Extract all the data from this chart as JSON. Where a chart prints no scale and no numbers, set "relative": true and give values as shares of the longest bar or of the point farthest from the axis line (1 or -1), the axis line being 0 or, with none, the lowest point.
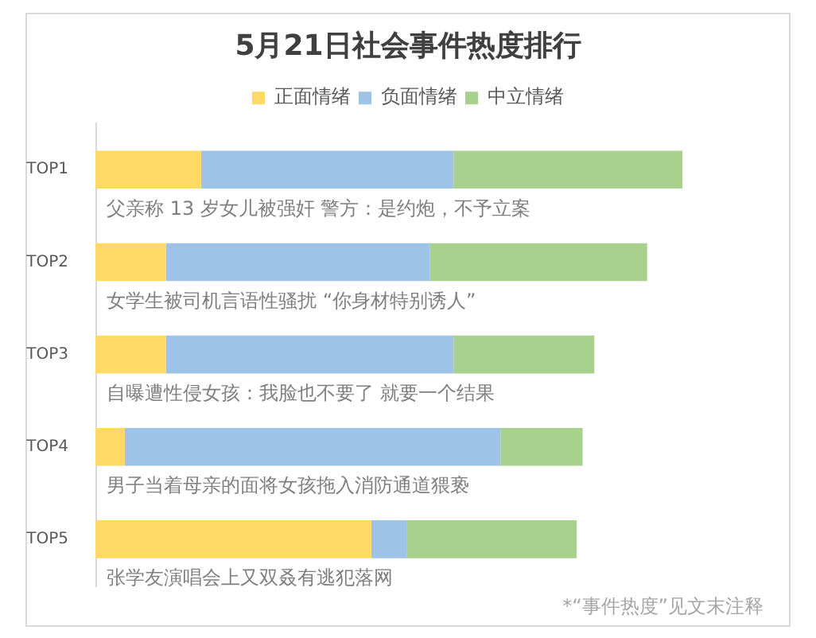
{
  "chart_data": {
    "type": "bar",
    "title": "5月21日社会事件热度排行",
    "orientation": "horizontal",
    "stacked": true,
    "relative": true,
    "legend": "top",
    "categories": [
      "TOP1",
      "TOP2",
      "TOP3",
      "TOP4",
      "TOP5"
    ],
    "series": [
      {
        "name": "正面情绪",
        "color": "#ffd966",
        "values": [
          0.18,
          0.12,
          0.12,
          0.05,
          0.47
        ]
      },
      {
        "name": "负面情绪",
        "color": "#9dc3e6",
        "values": [
          0.43,
          0.45,
          0.49,
          0.64,
          0.06
        ]
      },
      {
        "name": "中立情绪",
        "color": "#a9d18e",
        "values": [
          0.39,
          0.37,
          0.24,
          0.14,
          0.29
        ]
      }
    ],
    "annotations": [
      "父亲称 13 岁女儿被强奸 警方：是约炮，不予立案",
      "女学生被司机言语性骚扰 “你身材特别诱人”",
      "自曝遭性侵女孩：我脸也不要了 就要一个结果",
      "男子当着母亲的面将女孩拖入消防通道猥亵",
      "张学友演唱会上又双叒有逃犯落网",
      "*“事件热度”见文末注释"
    ]
  }
}
